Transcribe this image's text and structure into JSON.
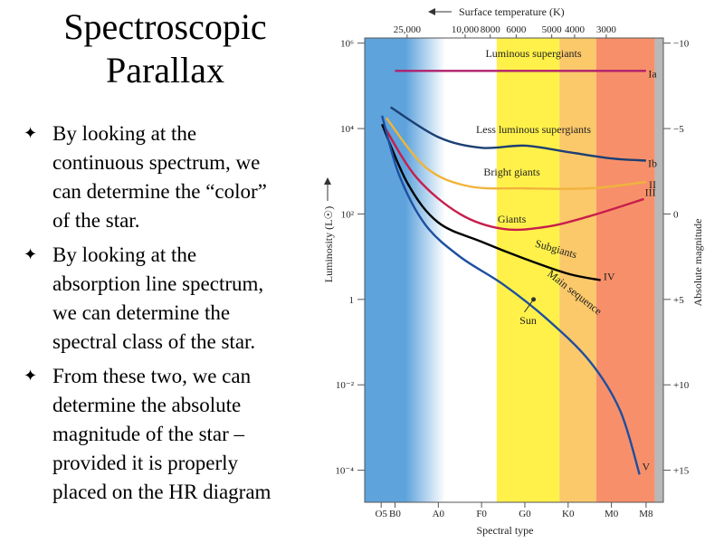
{
  "slide": {
    "title_line1": "Spectroscopic",
    "title_line2": "Parallax",
    "bullets": [
      {
        "lines": [
          "By looking at the",
          "continuous spectrum, we",
          "can determine the “color”",
          "of the star."
        ]
      },
      {
        "lines": [
          "By looking at the",
          "absorption line spectrum,",
          "we can determine the",
          "spectral class of the star."
        ]
      },
      {
        "lines": [
          "From these two, we can",
          "determine the absolute",
          "magnitude of the star –",
          "provided it is properly",
          "placed on the HR diagram"
        ]
      }
    ]
  },
  "diagram": {
    "top_axis_label": "Surface temperature (K)",
    "temperature_ticks": [
      {
        "label": "25,000",
        "x_class": 0.78
      },
      {
        "label": "10,000",
        "x_class": 2.12
      },
      {
        "label": "8000",
        "x_class": 2.7
      },
      {
        "label": "6000",
        "x_class": 3.3
      },
      {
        "label": "5000",
        "x_class": 4.12
      },
      {
        "label": "4000",
        "x_class": 4.65
      },
      {
        "label": "3000",
        "x_class": 5.38
      }
    ],
    "left_axis_label": "Luminosity (L☉)",
    "luminosity_ticks": [
      {
        "label": "10⁶",
        "log_l": 6
      },
      {
        "label": "10⁴",
        "log_l": 4
      },
      {
        "label": "10²",
        "log_l": 2
      },
      {
        "label": "1",
        "log_l": 0
      },
      {
        "label": "10⁻²",
        "log_l": -2
      },
      {
        "label": "10⁻⁴",
        "log_l": -4
      }
    ],
    "right_axis_label": "Absolute magnitude",
    "magnitude_ticks": [
      {
        "label": "−10",
        "log_l": 6
      },
      {
        "label": "−5",
        "log_l": 4
      },
      {
        "label": "0",
        "log_l": 2
      },
      {
        "label": "+5",
        "log_l": 0
      },
      {
        "label": "+10",
        "log_l": -2
      },
      {
        "label": "+15",
        "log_l": -4
      }
    ],
    "bottom_axis_label": "Spectral type",
    "spectral_ticks": [
      {
        "label": "O5",
        "x_class": 0.18
      },
      {
        "label": "B0",
        "x_class": 0.5
      },
      {
        "label": "A0",
        "x_class": 1.5
      },
      {
        "label": "F0",
        "x_class": 2.5
      },
      {
        "label": "G0",
        "x_class": 3.5
      },
      {
        "label": "K0",
        "x_class": 4.5
      },
      {
        "label": "M0",
        "x_class": 5.5
      },
      {
        "label": "M8",
        "x_class": 6.3
      }
    ],
    "color_bands": [
      {
        "color": "#5ea3dc",
        "from": -0.2,
        "to": 1.2
      },
      {
        "color": "#ffffff",
        "from": 1.2,
        "to": 2.85
      },
      {
        "color": "#fff14a",
        "from": 2.85,
        "to": 4.3
      },
      {
        "color": "#fbc86a",
        "from": 4.3,
        "to": 5.15
      },
      {
        "color": "#f7906a",
        "from": 5.15,
        "to": 6.5
      },
      {
        "color": "#b8b8b8",
        "from": 6.5,
        "to": 6.7
      }
    ],
    "curves": [
      {
        "label": "Luminous supergiants",
        "class": "Ia",
        "color": "#b0206d",
        "points": [
          [
            0.5,
            5.35
          ],
          [
            6.3,
            5.35
          ]
        ]
      },
      {
        "label": "Less luminous supergiants",
        "class": "Ib",
        "color": "#1c3f73",
        "points": [
          [
            0.4,
            4.5
          ],
          [
            1.5,
            3.8
          ],
          [
            2.5,
            3.55
          ],
          [
            3.5,
            3.6
          ],
          [
            4.5,
            3.45
          ],
          [
            5.5,
            3.3
          ],
          [
            6.3,
            3.25
          ]
        ]
      },
      {
        "label": "Bright giants",
        "class": "II",
        "color": "#f0b43c",
        "points": [
          [
            0.3,
            4.25
          ],
          [
            1.2,
            3.1
          ],
          [
            2.2,
            2.65
          ],
          [
            3.5,
            2.6
          ],
          [
            5.0,
            2.6
          ],
          [
            6.3,
            2.75
          ]
        ]
      },
      {
        "label": "Giants",
        "class": "III",
        "color": "#c81e4b",
        "points": [
          [
            0.25,
            4.05
          ],
          [
            1.0,
            2.85
          ],
          [
            2.0,
            2.0
          ],
          [
            3.0,
            1.65
          ],
          [
            4.0,
            1.7
          ],
          [
            5.0,
            1.95
          ],
          [
            6.25,
            2.35
          ]
        ]
      },
      {
        "label": "Subgiants",
        "class": "IV",
        "color": "#000000",
        "points": [
          [
            0.2,
            4.1
          ],
          [
            0.8,
            2.7
          ],
          [
            1.5,
            1.8
          ],
          [
            2.5,
            1.35
          ],
          [
            3.5,
            0.95
          ],
          [
            4.5,
            0.6
          ],
          [
            5.25,
            0.45
          ]
        ]
      },
      {
        "label": "Main sequence",
        "class": "V",
        "color": "#1e4fa0",
        "points": [
          [
            0.2,
            4.3
          ],
          [
            0.6,
            2.9
          ],
          [
            1.2,
            1.75
          ],
          [
            2.0,
            1.0
          ],
          [
            3.0,
            0.35
          ],
          [
            4.0,
            -0.45
          ],
          [
            5.0,
            -1.45
          ],
          [
            5.7,
            -2.6
          ],
          [
            6.15,
            -4.1
          ]
        ]
      }
    ],
    "sun": {
      "label": "Sun",
      "x_class": 3.7,
      "log_l": 0
    }
  }
}
